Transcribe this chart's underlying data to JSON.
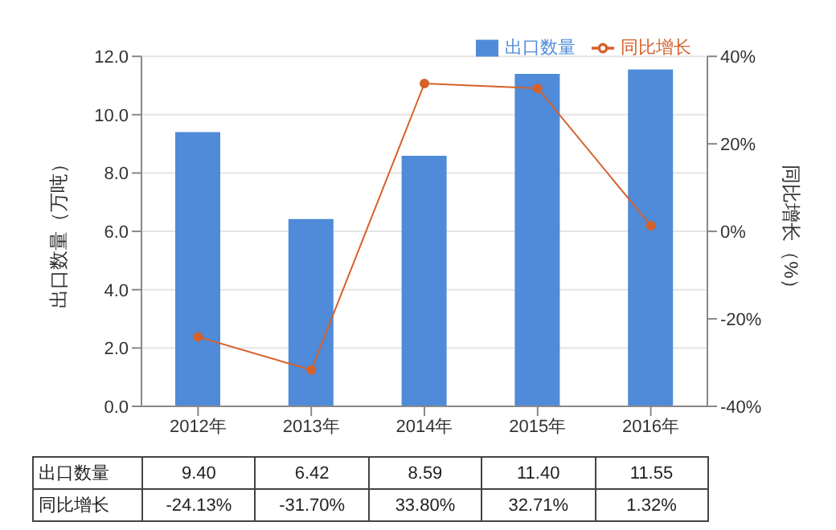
{
  "chart_data": {
    "type": "bar",
    "categories": [
      "2012年",
      "2013年",
      "2014年",
      "2015年",
      "2016年"
    ],
    "ylabel": "出口数量（万吨）",
    "y2label": "同比增长（%）",
    "ylim": [
      0,
      12
    ],
    "yticks": [
      {
        "value": 0,
        "label": "0.0"
      },
      {
        "value": 2,
        "label": "2.0"
      },
      {
        "value": 4,
        "label": "4.0"
      },
      {
        "value": 6,
        "label": "6.0"
      },
      {
        "value": 8,
        "label": "8.0"
      },
      {
        "value": 10,
        "label": "10.0"
      },
      {
        "value": 12,
        "label": "12.0"
      }
    ],
    "y2lim": [
      -40,
      40
    ],
    "y2ticks": [
      {
        "value": -40,
        "label": "-40%"
      },
      {
        "value": -20,
        "label": "-20%"
      },
      {
        "value": 0,
        "label": "0%"
      },
      {
        "value": 20,
        "label": "20%"
      },
      {
        "value": 40,
        "label": "40%"
      }
    ],
    "grid": "y",
    "legend": "top right",
    "marker": "circle",
    "series": [
      {
        "name": "出口数量",
        "color": "#4f8bd8",
        "values": [
          9.4,
          6.42,
          8.59,
          11.4,
          11.55
        ],
        "value_labels": [
          "9.40",
          "6.42",
          "8.59",
          "11.40",
          "11.55"
        ]
      },
      {
        "name": "同比增长",
        "type": "line",
        "axis": "y2",
        "color": "#d5612b",
        "values": [
          -24.13,
          -31.7,
          33.8,
          32.71,
          1.32
        ],
        "value_labels": [
          "-24.13%",
          "-31.70%",
          "33.80%",
          "32.71%",
          "1.32%"
        ]
      }
    ]
  }
}
